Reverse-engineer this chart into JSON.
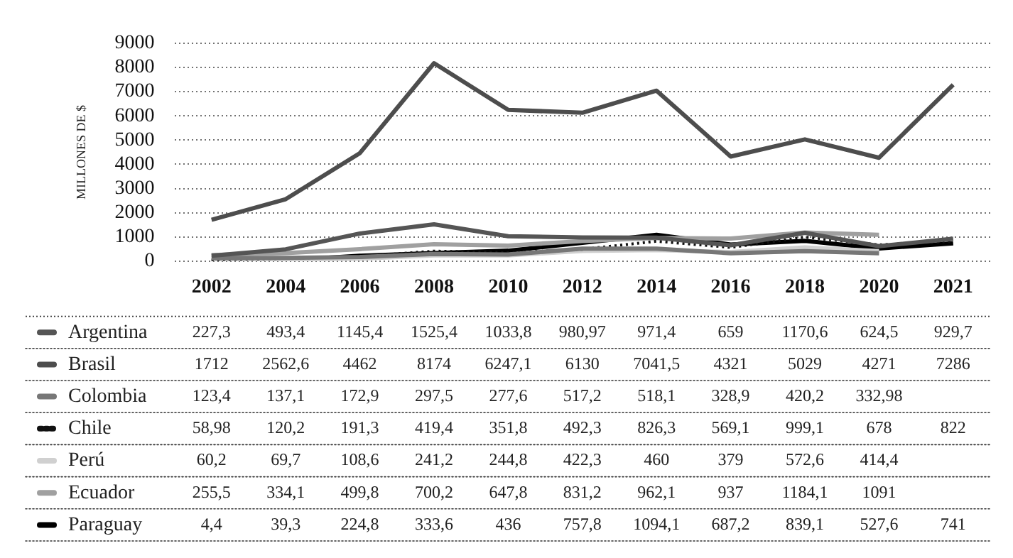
{
  "chart_data": {
    "type": "line",
    "ylabel": "MILLONES DE $",
    "categories": [
      "2002",
      "2004",
      "2006",
      "2008",
      "2010",
      "2012",
      "2014",
      "2016",
      "2018",
      "2020",
      "2021"
    ],
    "ylim": [
      0,
      9000
    ],
    "yticks": [
      0,
      1000,
      2000,
      3000,
      4000,
      5000,
      6000,
      7000,
      8000,
      9000
    ],
    "grid": "y",
    "legend": "bottom",
    "marker": "none",
    "line_style": "solid",
    "series": [
      {
        "name": "Argentina",
        "color": "#555555",
        "values": [
          227.3,
          493.4,
          1145.4,
          1525.4,
          1033.8,
          980.97,
          971.4,
          659,
          1170.6,
          624.5,
          929.7
        ],
        "value_labels": [
          "227,3",
          "493,4",
          "1145,4",
          "1525,4",
          "1033,8",
          "980,97",
          "971,4",
          "659",
          "1170,6",
          "624,5",
          "929,7"
        ]
      },
      {
        "name": "Brasil",
        "color": "#4d4d4d",
        "values": [
          1712,
          2562.6,
          4462,
          8174,
          6247.1,
          6130,
          7041.5,
          4321,
          5029,
          4271,
          7286
        ],
        "value_labels": [
          "1712",
          "2562,6",
          "4462",
          "8174",
          "6247,1",
          "6130",
          "7041,5",
          "4321",
          "5029",
          "4271",
          "7286"
        ]
      },
      {
        "name": "Colombia",
        "color": "#777777",
        "values": [
          123.4,
          137.1,
          172.9,
          297.5,
          277.6,
          517.2,
          518.1,
          328.9,
          420.2,
          332.98,
          null
        ],
        "value_labels": [
          "123,4",
          "137,1",
          "172,9",
          "297,5",
          "277,6",
          "517,2",
          "518,1",
          "328,9",
          "420,2",
          "332,98",
          null
        ]
      },
      {
        "name": "Chile",
        "color": "#111111",
        "line_style": "dotted",
        "values": [
          58.98,
          120.2,
          191.3,
          419.4,
          351.8,
          492.3,
          826.3,
          569.1,
          999.1,
          678,
          822
        ],
        "value_labels": [
          "58,98",
          "120,2",
          "191,3",
          "419,4",
          "351,8",
          "492,3",
          "826,3",
          "569,1",
          "999,1",
          "678",
          "822"
        ]
      },
      {
        "name": "Perú",
        "color": "#d0d0d0",
        "values": [
          60.2,
          69.7,
          108.6,
          241.2,
          244.8,
          422.3,
          460,
          379,
          572.6,
          414.4,
          null
        ],
        "value_labels": [
          "60,2",
          "69,7",
          "108,6",
          "241,2",
          "244,8",
          "422,3",
          "460",
          "379",
          "572,6",
          "414,4",
          null
        ]
      },
      {
        "name": "Ecuador",
        "color": "#a0a0a0",
        "values": [
          255.5,
          334.1,
          499.8,
          700.2,
          647.8,
          831.2,
          962.1,
          937,
          1184.1,
          1091,
          null
        ],
        "value_labels": [
          "255,5",
          "334,1",
          "499,8",
          "700,2",
          "647,8",
          "831,2",
          "962,1",
          "937",
          "1184,1",
          "1091",
          null
        ]
      },
      {
        "name": "Paraguay",
        "color": "#000000",
        "values": [
          4.4,
          39.3,
          224.8,
          333.6,
          436,
          757.8,
          1094.1,
          687.2,
          839.1,
          527.6,
          741
        ],
        "value_labels": [
          "4,4",
          "39,3",
          "224,8",
          "333,6",
          "436",
          "757,8",
          "1094,1",
          "687,2",
          "839,1",
          "527,6",
          "741"
        ]
      }
    ]
  }
}
